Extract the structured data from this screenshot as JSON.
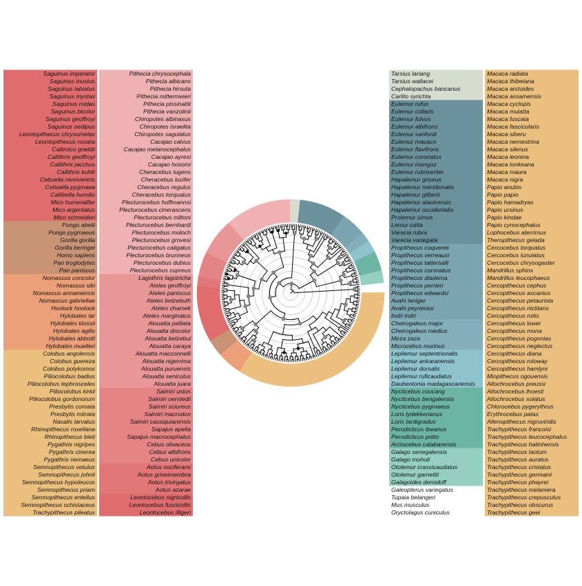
{
  "colors": {
    "branch": "#000000",
    "calibration_node": "#8a8a8a",
    "highlight_node": "#000000",
    "grid": "#9a9a9a"
  },
  "clades": [
    {
      "color": "#ebc07e",
      "species": [
        "Macaca radiata",
        "Macaca thibetana",
        "Macaca arctoides",
        "Macaca assamensis",
        "Macaca cyclopis",
        "Macaca mulatta",
        "Macaca fuscata",
        "Macaca fascicularis",
        "Macaca siberu",
        "Macaca nemestrina",
        "Macaca silenus",
        "Macaca leonina",
        "Macaca tonkeana",
        "Macaca maura",
        "Macaca nigra",
        "Papio anubis",
        "Papio papio",
        "Papio hamadryas",
        "Papio ursinus",
        "Papio kindae",
        "Papio cynocephalus",
        "Lophocebus aterrimus",
        "Theropithecus gelada",
        "Cercocebus torquatus",
        "Cercocebus lunulatus",
        "Cercocebus chrysogaster",
        "Mandrillus sphinx",
        "Mandrillus leucophaeus",
        "Cercopithecus cephus",
        "Cercopithecus ascanius",
        "Cercopithecus petaurista",
        "Cercopithecus nictitans",
        "Cercopithecus mitis",
        "Cercopithecus lowei",
        "Cercopithecus mona",
        "Cercopithecus pogonias",
        "Cercopithecus neglectus",
        "Cercopithecus diana",
        "Cercopithecus roloway",
        "Cercopithecus hamlyni",
        "Miopithecus ogouensis",
        "Allochrocebus preussi",
        "Allochrocebus lhoesti",
        "Allochrocebus solatus",
        "Chlorocebus pygerythrus",
        "Erythrocebus patas",
        "Allenopithecus nigroviridis",
        "Trachypithecus francoisi",
        "Trachypithecus leucocephalus",
        "Trachypithecus hatinhensis",
        "Trachypithecus laotum",
        "Trachypithecus auratus",
        "Trachypithecus cristatus",
        "Trachypithecus germaini",
        "Trachypithecus phayrei",
        "Trachypithecus melamera",
        "Trachypithecus crepusculus",
        "Trachypithecus obscurus",
        "Trachypithecus geei",
        "Trachypithecus pileatus",
        "Semnopithecus schistaceus",
        "Semnopithecus entellus",
        "Semnopithecus priam",
        "Semnopithecus hypoleucos",
        "Semnopithecus johnii",
        "Semnopithecus vetulus",
        "Pygathrix nemaeus",
        "Pygathrix cinerea",
        "Pygathrix nigripes",
        "Rhinopithecus bieti",
        "Rhinopithecus roxellana",
        "Nasalis larvatus",
        "Presbytis mitrata",
        "Presbytis comata",
        "Piliocolobus gordonorum",
        "Piliocolobus kirkii",
        "Piliocolobus tephrosceles",
        "Piliocolobus badius",
        "Colobus polykomos",
        "Colobus guereza",
        "Colobus angolensis"
      ]
    },
    {
      "color": "#eca078",
      "species": [
        "Hylobates muelleri",
        "Hylobates abbotti",
        "Hylobates agilis",
        "Hylobates klossii",
        "Hylobates lar",
        "Hoolock hoolock",
        "Nomascus gabriellae",
        "Nomascus annamensis",
        "Nomascus siki",
        "Nomascus concolor"
      ]
    },
    {
      "color": "#c99376",
      "species": [
        "Pan paniscus",
        "Pan troglodytes",
        "Homo sapiens",
        "Gorilla beringei",
        "Gorilla gorilla",
        "Pongo pygmaeus",
        "Pongo abelii"
      ]
    },
    {
      "color": "#e06d6d",
      "species": [
        "Mico schneideri",
        "Mico argentatus",
        "Mico humeralifer",
        "Callibella humilis",
        "Cebuella pygmaea",
        "Cebuella niveiventris",
        "Callithrix kuhlii",
        "Callithrix jacchus",
        "Callithrix geoffroyi",
        "Callimico goeldii",
        "Leontopithecus rosalia",
        "Leontopithecus chrysomelas",
        "Saguinus oedipus",
        "Saguinus geoffroyi",
        "Saguinus bicolor",
        "Saguinus midas",
        "Saguinus mystax",
        "Saguinus labiatus",
        "Saguinus inustus",
        "Saguinus imperator",
        "Leontocebus illigeri",
        "Leontocebus fuscicollis",
        "Leontocebus nigricollis"
      ]
    },
    {
      "color": "#e27777",
      "species": [
        "Aotus azarae",
        "Aotus trivirgatus",
        "Aotus griseimembra",
        "Aotus vociferans"
      ]
    },
    {
      "color": "#e58484",
      "species": [
        "Cebus unicolor",
        "Cebus albifrons",
        "Cebus olivaceus",
        "Sapajus macrocephalus",
        "Sapajus apella",
        "Saimiri cassiquiarensis",
        "Saimiri macrodon",
        "Saimiri sciureus",
        "Saimiri oerstedii",
        "Saimiri ustus"
      ]
    },
    {
      "color": "#e99697",
      "species": [
        "Alouatta juara",
        "Alouatta seniculus",
        "Alouatta puruensis",
        "Alouatta nigerrima",
        "Alouatta macconnelli",
        "Alouatta caraya",
        "Alouatta belzebul",
        "Alouatta discolor",
        "Alouatta palliata",
        "Ateles marginatus",
        "Ateles chamek",
        "Ateles belzebuth",
        "Ateles paniscus",
        "Ateles geoffroyi",
        "Lagothrix lagotricha"
      ]
    },
    {
      "color": "#efb1b1",
      "species": [
        "Plecturocebus cupreus",
        "Plecturocebus dubius",
        "Plecturocebus brunneus",
        "Plecturocebus caligatus",
        "Plecturocebus grovesi",
        "Plecturocebus moloch",
        "Plecturocebus bernhardi",
        "Plecturocebus miltoni",
        "Plecturocebus cinerascens",
        "Plecturocebus hoffmannsi",
        "Cheracebus torquatus",
        "Cheracebus regulus",
        "Cheracebus lucifer",
        "Cheracebus lugens",
        "Cacajao hosomi",
        "Cacajao ayresi",
        "Cacajao melanocephalus",
        "Cacajao calvus",
        "Chiropotes sagulatus",
        "Chiropotes israelita",
        "Chiropotes albinasus",
        "Pithecia vanzolinii",
        "Pithecia pissinattii",
        "Pithecia mittermeieri",
        "Pithecia hirsuta",
        "Pithecia albicans",
        "Pithecia chrysocephala"
      ]
    },
    {
      "color": "#d6dccf",
      "species": [
        "Tarsius lariang",
        "Tarsius wallacei",
        "Cephalopachus bancanus",
        "Carlito syrichta"
      ]
    },
    {
      "color": "#6b929c",
      "species": [
        "Eulemur rufus",
        "Eulemur collaris",
        "Eulemur fulvus",
        "Eulemur albifrons",
        "Eulemur sanfordi",
        "Eulemur macaco",
        "Eulemur flavifrons",
        "Eulemur coronatus",
        "Eulemur mongoz",
        "Eulemur rubriventer",
        "Hapalemur griseus",
        "Hapalemur meridionalis",
        "Hapalemur gilberti",
        "Hapalemur alaotrensis",
        "Hapalemur occidentalis",
        "Prolemur simus",
        "Lemur catta",
        "Varecia rubra",
        "Varecia variegata"
      ]
    },
    {
      "color": "#7aa4af",
      "species": [
        "Propithecus coquereli",
        "Propithecus verreauxi",
        "Propithecus tattersalli",
        "Propithecus coronatus",
        "Propithecus diadema",
        "Propithecus perrieri",
        "Propithecus edwardsi",
        "Avahi laniger",
        "Avahi peyrierasi",
        "Indri indri"
      ]
    },
    {
      "color": "#83afbb",
      "species": [
        "Cheirogaleus major",
        "Cheirogaleus medius",
        "Mirza zaza",
        "Microcebus murinus"
      ]
    },
    {
      "color": "#8ec3ce",
      "species": [
        "Lepilemur septentrionalis",
        "Lepilemur ankaranensis",
        "Lepilemur dorsalis",
        "Lepilemur ruficaudatus",
        "Daubentonia madagascariensis"
      ]
    },
    {
      "color": "#6db5a3",
      "species": [
        "Nycticebus coucang",
        "Nycticebus bengalensis",
        "Nycticebus pygmaeus",
        "Loris lydekkerianus",
        "Loris tardigradus",
        "Perodicticus ibeanus",
        "Perodicticus potto",
        "Arctocebus calabarensis"
      ]
    },
    {
      "color": "#94cfbf",
      "species": [
        "Galago senegalensis",
        "Galago moholi",
        "Otolemur crassicaudatus",
        "Otolemur garnettii",
        "Galagoides demidoff"
      ]
    },
    {
      "color": "",
      "species": [
        "Galeopterus variegatus",
        "Tupaia belangeri",
        "Mus musculus",
        "Oryctolagus cuniculus"
      ]
    }
  ]
}
